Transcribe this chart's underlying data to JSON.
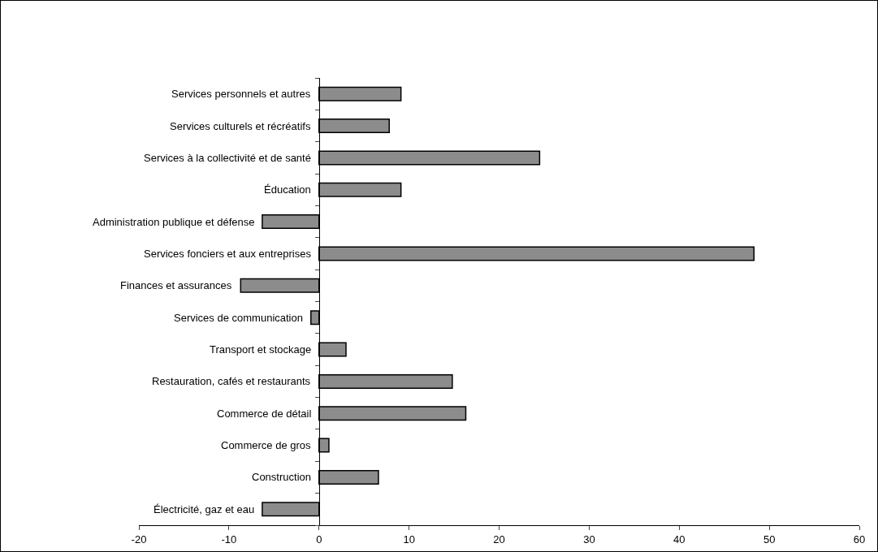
{
  "chart_data": {
    "type": "bar",
    "orientation": "horizontal",
    "categories": [
      "Services personnels et autres",
      "Services culturels et récréatifs",
      "Services à la collectivité et de santé",
      "Éducation",
      "Administration publique et défense",
      "Services fonciers et aux entreprises",
      "Finances et assurances",
      "Services de communication",
      "Transport et stockage",
      "Restauration, cafés et restaurants",
      "Commerce de détail",
      "Commerce de gros",
      "Construction",
      "Électricité, gaz et eau"
    ],
    "values": [
      9.1,
      7.8,
      24.5,
      9.1,
      -6.3,
      48.3,
      -8.7,
      -0.9,
      3.0,
      14.8,
      16.3,
      1.1,
      6.6,
      -6.3
    ],
    "color": "#8c8c8c",
    "xlim": [
      -20,
      60
    ],
    "xticks": [
      -20,
      -10,
      0,
      10,
      20,
      30,
      40,
      50,
      60
    ],
    "grid": false
  }
}
